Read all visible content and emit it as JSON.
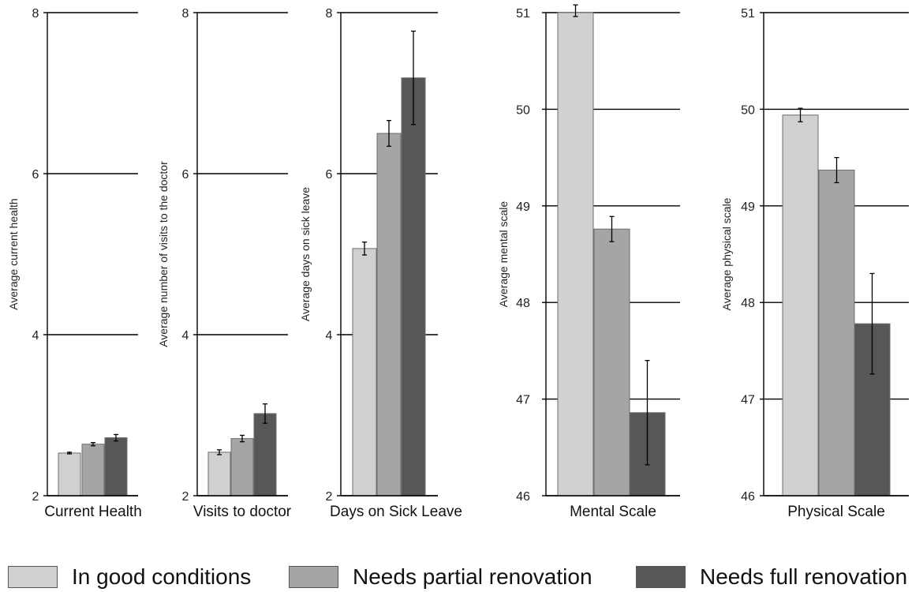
{
  "chart_data": [
    {
      "type": "bar",
      "xlabel": "Current Health",
      "ylabel": "Average current health",
      "ylim": [
        2,
        8
      ],
      "yticks": [
        2,
        4,
        6,
        8
      ],
      "grid": true,
      "series": [
        {
          "name": "In good conditions",
          "value": 2.53,
          "err": 0.01
        },
        {
          "name": "Needs partial renovation",
          "value": 2.64,
          "err": 0.02
        },
        {
          "name": "Needs full renovation",
          "value": 2.72,
          "err": 0.04
        }
      ]
    },
    {
      "type": "bar",
      "xlabel": "Visits to doctor",
      "ylabel": "Average number of visits to the doctor",
      "ylim": [
        2,
        8
      ],
      "yticks": [
        2,
        4,
        6,
        8
      ],
      "grid": true,
      "series": [
        {
          "name": "In good conditions",
          "value": 2.54,
          "err": 0.03
        },
        {
          "name": "Needs partial renovation",
          "value": 2.71,
          "err": 0.04
        },
        {
          "name": "Needs full renovation",
          "value": 3.02,
          "err": 0.12
        }
      ]
    },
    {
      "type": "bar",
      "xlabel": "Days on Sick Leave",
      "ylabel": "Average days on sick leave",
      "ylim": [
        2,
        8
      ],
      "yticks": [
        2,
        4,
        6,
        8
      ],
      "grid": true,
      "series": [
        {
          "name": "In good conditions",
          "value": 5.07,
          "err": 0.08
        },
        {
          "name": "Needs partial renovation",
          "value": 6.5,
          "err": 0.16
        },
        {
          "name": "Needs full renovation",
          "value": 7.19,
          "err": 0.58
        }
      ]
    },
    {
      "type": "bar",
      "xlabel": "Mental Scale",
      "ylabel": "Average mental scale",
      "ylim": [
        46,
        51
      ],
      "yticks": [
        46,
        47,
        48,
        49,
        50,
        51
      ],
      "grid": true,
      "series": [
        {
          "name": "In good conditions",
          "value": 51.02,
          "err": 0.06
        },
        {
          "name": "Needs partial renovation",
          "value": 48.76,
          "err": 0.13
        },
        {
          "name": "Needs full renovation",
          "value": 46.86,
          "err": 0.54
        }
      ]
    },
    {
      "type": "bar",
      "xlabel": "Physical Scale",
      "ylabel": "Average physical scale",
      "ylim": [
        46,
        51
      ],
      "yticks": [
        46,
        47,
        48,
        49,
        50,
        51
      ],
      "grid": true,
      "series": [
        {
          "name": "In good conditions",
          "value": 49.94,
          "err": 0.07
        },
        {
          "name": "Needs partial renovation",
          "value": 49.37,
          "err": 0.13
        },
        {
          "name": "Needs full renovation",
          "value": 47.78,
          "err": 0.52
        }
      ]
    }
  ],
  "legend": {
    "placement": "bottom",
    "items": [
      {
        "label": "In good conditions",
        "color": "#d0d0d0"
      },
      {
        "label": "Needs partial renovation",
        "color": "#a5a5a5"
      },
      {
        "label": "Needs full renovation",
        "color": "#575757"
      }
    ]
  },
  "colors": {
    "bar_stroke": "#6e6e6e",
    "grid": "#000000",
    "axis": "#000000",
    "errorbar": "#000000"
  }
}
